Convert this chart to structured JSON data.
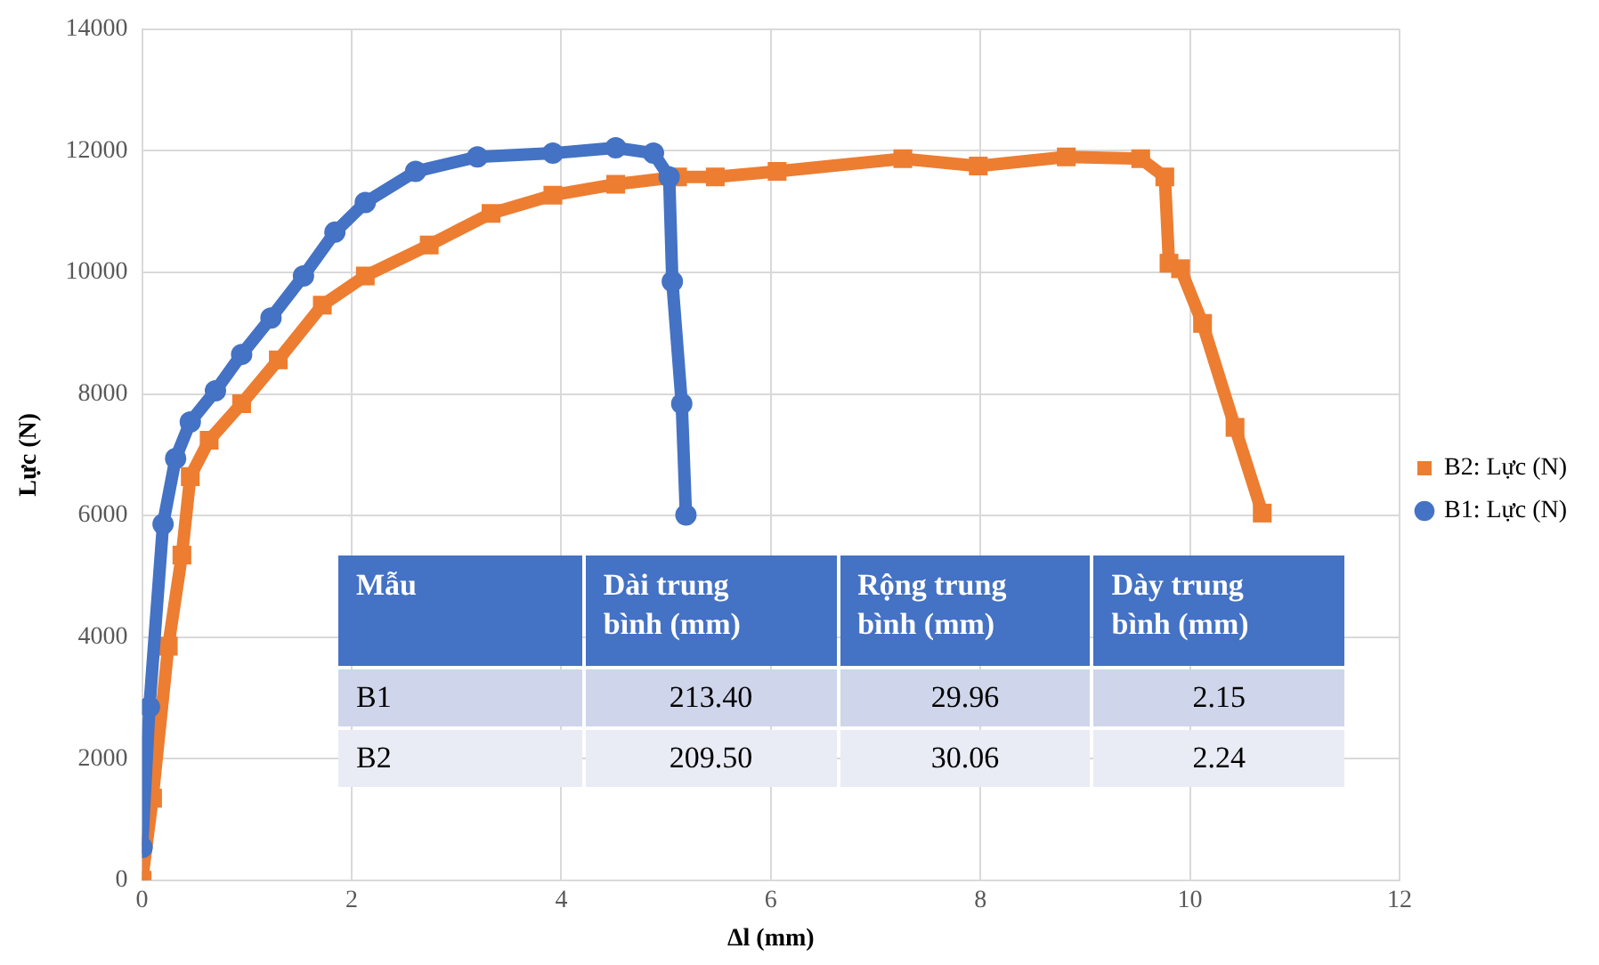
{
  "chart_data": {
    "type": "line",
    "xlabel": "Δl (mm)",
    "ylabel": "Lực (N)",
    "xlim": [
      0,
      12
    ],
    "xticks": [
      0,
      2,
      4,
      6,
      8,
      10,
      12
    ],
    "ylim": [
      0,
      14000
    ],
    "yticks": [
      0,
      2000,
      4000,
      6000,
      8000,
      10000,
      12000,
      14000
    ],
    "grid": true,
    "legend": "right",
    "line_style": "solid",
    "series": [
      {
        "name": "B2: Lực (N)",
        "color": "#ed7d31",
        "marker": "square",
        "x": [
          0,
          0.1,
          0.25,
          0.38,
          0.46,
          0.64,
          0.95,
          1.3,
          1.72,
          2.13,
          2.74,
          3.33,
          3.92,
          4.52,
          5.11,
          5.47,
          6.06,
          7.26,
          7.98,
          8.82,
          9.53,
          9.76,
          9.8,
          9.91,
          10.12,
          10.43,
          10.69
        ],
        "values": [
          0,
          1350,
          3850,
          5350,
          6640,
          7240,
          7840,
          8560,
          9460,
          9940,
          10450,
          10970,
          11270,
          11450,
          11570,
          11570,
          11660,
          11870,
          11750,
          11900,
          11870,
          11570,
          10150,
          10060,
          9160,
          7450,
          6040
        ]
      },
      {
        "name": "B1: Lực (N)",
        "color": "#4472c4",
        "marker": "circle",
        "x": [
          0,
          0.07,
          0.2,
          0.32,
          0.46,
          0.7,
          0.95,
          1.23,
          1.54,
          1.84,
          2.13,
          2.61,
          3.2,
          3.92,
          4.52,
          4.88,
          5.03,
          5.06,
          5.15,
          5.19
        ],
        "values": [
          540,
          2850,
          5860,
          6940,
          7540,
          8050,
          8650,
          9250,
          9940,
          10660,
          11150,
          11660,
          11900,
          11960,
          12050,
          11960,
          11570,
          9850,
          7840,
          6010
        ]
      }
    ],
    "annotations": [
      "Mẫu",
      "Dài trung bình (mm)",
      "Rộng trung bình (mm)",
      "Dày trung bình (mm)",
      "B1",
      "213.40",
      "29.96",
      "2.15",
      "B2",
      "209.50",
      "30.06",
      "2.24"
    ]
  }
}
